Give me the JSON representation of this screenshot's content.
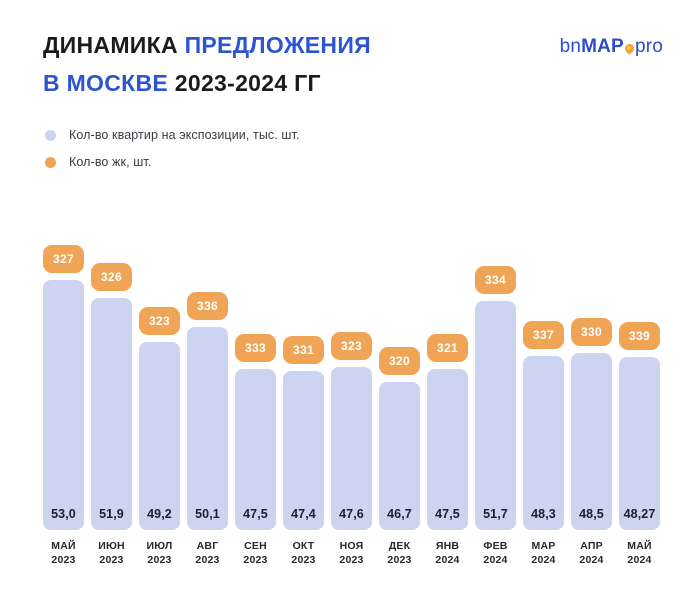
{
  "header": {
    "title_line1": {
      "dark": "ДИНАМИКА",
      "blue": "ПРЕДЛОЖЕНИЯ"
    },
    "title_line2": {
      "blue": "В МОСКВЕ",
      "dark": "2023-2024 ГГ"
    },
    "logo": {
      "bn": "bn",
      "map": "MAP",
      "pro": "pro"
    }
  },
  "legend": {
    "items": [
      {
        "label": "Кол-во квартир на экспозиции, тыс. шт.",
        "color": "#ccd4f2"
      },
      {
        "label": "Кол-во жк, шт.",
        "color": "#f0a556"
      }
    ]
  },
  "colors": {
    "accent_blue": "#2c55cf",
    "logo_blue": "#2b4ec7",
    "bar_lavender": "#ccd4f2",
    "badge_orange": "#f0a556",
    "dark_text": "#1b1b1f",
    "background": "#ffffff"
  },
  "chart_data": {
    "type": "bar",
    "title": "ДИНАМИКА ПРЕДЛОЖЕНИЯ В МОСКВЕ 2023-2024 ГГ",
    "xlabel": "",
    "ylabel": "",
    "grid": false,
    "value_axis": "hidden",
    "legend_position": "top-left",
    "categories": [
      "МАЙ 2023",
      "ИЮН 2023",
      "ИЮЛ 2023",
      "АВГ 2023",
      "СЕН 2023",
      "ОКТ 2023",
      "НОЯ 2023",
      "ДЕК 2023",
      "ЯНВ 2024",
      "ФЕВ 2024",
      "МАР 2024",
      "АПР 2024",
      "МАЙ 2024"
    ],
    "series": [
      {
        "name": "Кол-во квартир на экспозиции, тыс. шт.",
        "render": "bar",
        "color": "#ccd4f2",
        "values": [
          53.0,
          51.9,
          49.2,
          50.1,
          47.5,
          47.4,
          47.6,
          46.7,
          47.5,
          51.7,
          48.3,
          48.5,
          48.27
        ],
        "labels": [
          "53,0",
          "51,9",
          "49,2",
          "50,1",
          "47,5",
          "47,4",
          "47,6",
          "46,7",
          "47,5",
          "51,7",
          "48,3",
          "48,5",
          "48,27"
        ]
      },
      {
        "name": "Кол-во жк, шт.",
        "render": "badge-above-bar",
        "color": "#f0a556",
        "values": [
          327,
          326,
          323,
          336,
          333,
          331,
          323,
          320,
          321,
          334,
          337,
          330,
          339
        ]
      }
    ]
  }
}
